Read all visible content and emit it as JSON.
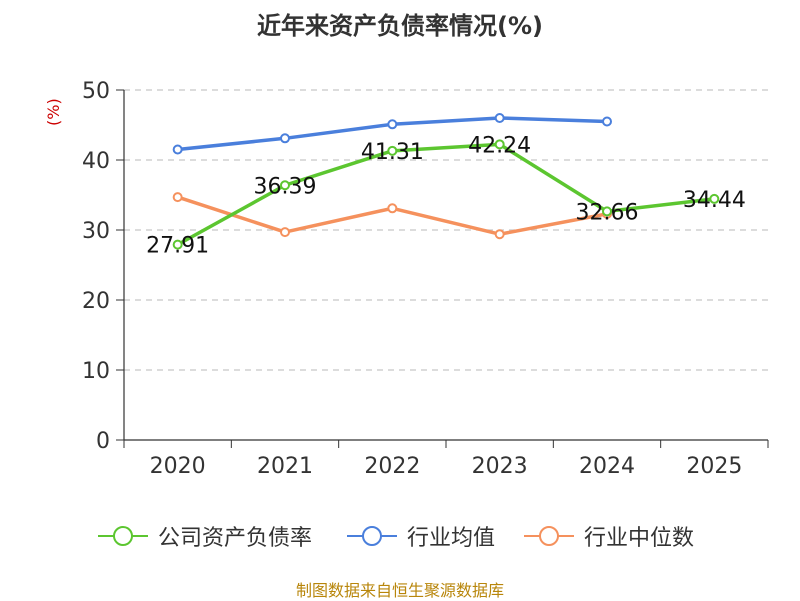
{
  "chart_data": {
    "type": "line",
    "title": "近年来资产负债率情况(%)",
    "ylabel": "(%)",
    "xlabel": "",
    "categories": [
      "2020",
      "2021",
      "2022",
      "2023",
      "2024",
      "2025"
    ],
    "ylim": [
      0,
      50
    ],
    "yticks": [
      "0",
      "10",
      "20",
      "30",
      "40",
      "50"
    ],
    "grid": true,
    "legend_position": "bottom",
    "series": [
      {
        "name": "公司资产负债率",
        "color": "#5cc630",
        "values": [
          27.91,
          36.39,
          41.31,
          42.24,
          32.66,
          34.44
        ],
        "labels": [
          "27.91",
          "36.39",
          "41.31",
          "42.24",
          "32.66",
          "34.44"
        ]
      },
      {
        "name": "行业均值",
        "color": "#4a7fdc",
        "values": [
          41.5,
          43.1,
          45.1,
          46.0,
          45.5,
          null
        ]
      },
      {
        "name": "行业中位数",
        "color": "#f5915d",
        "values": [
          34.7,
          29.7,
          33.1,
          29.4,
          32.3,
          null
        ]
      }
    ]
  },
  "source_text": "制图数据来自恒生聚源数据库"
}
